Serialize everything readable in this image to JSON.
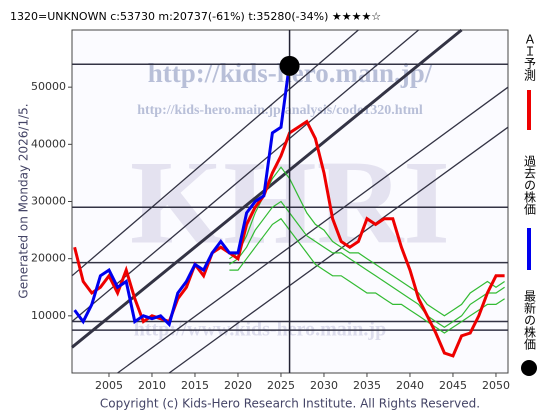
{
  "chart_data": {
    "type": "line",
    "title": "1320=UNKNOWN    c:53730   m:20737(-61%)   t:35280(-34%)   ★★★★☆",
    "side_note": "Generated on Monday 2026/1/5.",
    "footer": "Copyright (c) Kids-Hero Research Institute. All Rights Reserved.",
    "watermarks": [
      "http://kids-hero.main.jp/",
      "http://kids-hero.main.jp/analysis/code1320.html",
      "KHRI",
      "http://www.kids-hero.main.jp"
    ],
    "xlim": [
      2000.7,
      2051.4
    ],
    "ylim": [
      0,
      60000
    ],
    "xticks": [
      2005,
      2010,
      2015,
      2020,
      2025,
      2030,
      2035,
      2040,
      2045,
      2050
    ],
    "yticks": [
      10000,
      20000,
      30000,
      40000,
      50000
    ],
    "levels": [
      54000,
      29000,
      19300,
      9000,
      7500
    ],
    "trend_lines": [
      [
        2000.7,
        17000,
        2034,
        60000
      ],
      [
        2000.7,
        9000,
        2041,
        60000
      ],
      [
        2000.7,
        4500,
        2046,
        60000
      ],
      [
        2006,
        0,
        2051.4,
        50000
      ],
      [
        2012,
        0,
        2051.4,
        43000
      ]
    ],
    "series": [
      {
        "name": "ＡＩ予測",
        "color": "#ee0000",
        "x": [
          2001,
          2002,
          2003,
          2004,
          2005,
          2006,
          2007,
          2008,
          2009,
          2010,
          2011,
          2012,
          2013,
          2014,
          2015,
          2016,
          2017,
          2018,
          2019,
          2020,
          2021,
          2022,
          2023,
          2024,
          2025,
          2026,
          2027,
          2028,
          2029,
          2030,
          2031,
          2032,
          2033,
          2034,
          2035,
          2036,
          2037,
          2038,
          2039,
          2040,
          2041,
          2042,
          2043,
          2044,
          2045,
          2046,
          2047,
          2048,
          2049,
          2050,
          2051
        ],
        "values": [
          22000,
          16000,
          14000,
          15000,
          17000,
          14000,
          18000,
          13000,
          9000,
          10000,
          9500,
          9000,
          13000,
          15000,
          19000,
          17000,
          21000,
          22000,
          21000,
          20000,
          26000,
          29000,
          31000,
          35000,
          38000,
          42000,
          43000,
          44000,
          41000,
          35000,
          27000,
          23000,
          22000,
          23000,
          27000,
          26000,
          27000,
          27000,
          22000,
          18000,
          13000,
          10000,
          7000,
          3500,
          3000,
          6500,
          7000,
          10000,
          14000,
          17000,
          17000
        ]
      },
      {
        "name": "過去の株価",
        "color": "#0000ee",
        "x": [
          2001,
          2002,
          2003,
          2004,
          2005,
          2006,
          2007,
          2008,
          2009,
          2010,
          2011,
          2012,
          2013,
          2014,
          2015,
          2016,
          2017,
          2018,
          2019,
          2020,
          2021,
          2022,
          2023,
          2024,
          2025,
          2025.8
        ],
        "values": [
          11000,
          9000,
          12000,
          17000,
          18000,
          15000,
          16000,
          9000,
          10000,
          9500,
          10000,
          8500,
          14000,
          16000,
          19000,
          18000,
          21000,
          23000,
          21000,
          21000,
          28000,
          30000,
          31000,
          42000,
          43000,
          52000
        ]
      },
      {
        "color": "#33bb33",
        "x": [
          2019,
          2020,
          2021,
          2022,
          2023,
          2024,
          2025,
          2026,
          2027,
          2028,
          2029,
          2030,
          2031,
          2032,
          2033,
          2034,
          2035,
          2036,
          2037,
          2038,
          2039,
          2040,
          2041,
          2042,
          2043,
          2044,
          2045,
          2046,
          2047,
          2048,
          2049,
          2050,
          2051
        ],
        "values": [
          20000,
          21000,
          24000,
          28000,
          31000,
          34000,
          36000,
          34000,
          31000,
          28000,
          26000,
          25000,
          23000,
          22000,
          21000,
          21000,
          20000,
          19000,
          18000,
          17000,
          16000,
          15000,
          14000,
          12000,
          11000,
          10000,
          11000,
          12000,
          14000,
          15000,
          16000,
          15000,
          16000
        ]
      },
      {
        "color": "#33bb33",
        "x": [
          2019,
          2020,
          2021,
          2022,
          2023,
          2024,
          2025,
          2026,
          2027,
          2028,
          2029,
          2030,
          2031,
          2032,
          2033,
          2034,
          2035,
          2036,
          2037,
          2038,
          2039,
          2040,
          2041,
          2042,
          2043,
          2044,
          2045,
          2046,
          2047,
          2048,
          2049,
          2050,
          2051
        ],
        "values": [
          19000,
          20000,
          22000,
          25000,
          27000,
          29000,
          30000,
          28000,
          26000,
          24000,
          23000,
          22000,
          21000,
          21000,
          20000,
          19000,
          18000,
          17000,
          16000,
          15000,
          14000,
          13000,
          12000,
          10000,
          9000,
          8000,
          9000,
          10000,
          12000,
          13000,
          14000,
          14000,
          15000
        ]
      },
      {
        "color": "#33bb33",
        "x": [
          2019,
          2020,
          2021,
          2022,
          2023,
          2024,
          2025,
          2026,
          2027,
          2028,
          2029,
          2030,
          2031,
          2032,
          2033,
          2034,
          2035,
          2036,
          2037,
          2038,
          2039,
          2040,
          2041,
          2042,
          2043,
          2044,
          2045,
          2046,
          2047,
          2048,
          2049,
          2050,
          2051
        ],
        "values": [
          18000,
          18000,
          20000,
          22000,
          24000,
          26000,
          27000,
          25000,
          23000,
          21000,
          19000,
          18000,
          17000,
          17000,
          16000,
          15000,
          14000,
          14000,
          13000,
          12000,
          12000,
          11000,
          10000,
          9000,
          8000,
          7000,
          8000,
          9000,
          10000,
          11000,
          12000,
          12000,
          13000
        ]
      }
    ],
    "latest": {
      "name": "最新の株価",
      "color": "#000000",
      "x": 2026,
      "value": 53730
    }
  }
}
